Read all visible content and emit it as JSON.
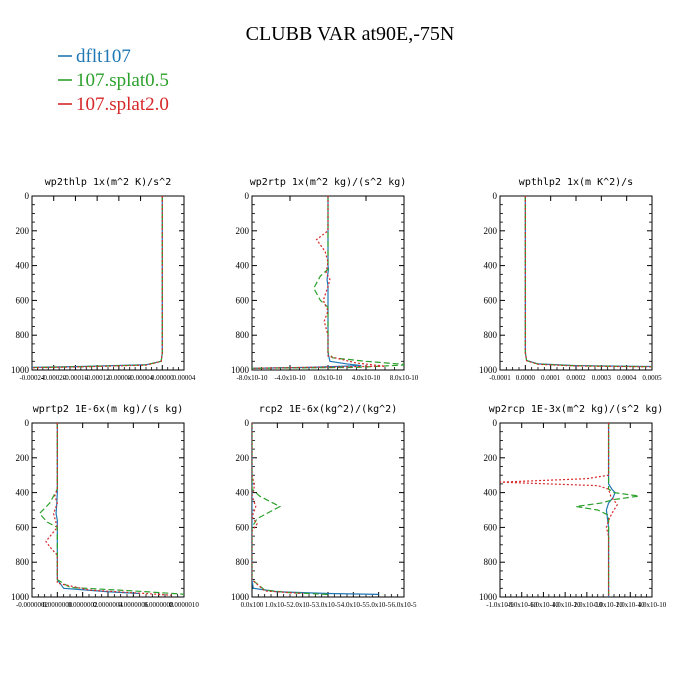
{
  "title": "CLUBB VAR at90E,-75N",
  "legend": [
    {
      "label": "dflt107",
      "color": "#1f77b4",
      "dash": ""
    },
    {
      "label": "107.splat0.5",
      "color": "#2ca02c",
      "dash": "6,3"
    },
    {
      "label": "107.splat2.0",
      "color": "#d62728",
      "dash": "2,2"
    }
  ],
  "chart_data": [
    {
      "type": "line",
      "title": "wp2thlp   1x(m^2 K)/s^2",
      "yticks": [
        "0",
        "200",
        "400",
        "600",
        "800",
        "1000"
      ],
      "xticks": [
        "-0.00024",
        "-0.00020",
        "-0.00016",
        "-0.00012",
        "-0.00008",
        "-0.00004",
        "0.00000",
        "0.00004"
      ],
      "xlim": [
        -0.00024,
        4e-05
      ],
      "ylim": [
        1000,
        0
      ],
      "series": [
        {
          "name": "dflt107",
          "points": [
            [
              0,
              0
            ],
            [
              0,
              300
            ],
            [
              0,
              600
            ],
            [
              0,
              900
            ],
            [
              -2e-06,
              950
            ],
            [
              -3e-05,
              970
            ],
            [
              -0.00015,
              980
            ],
            [
              -0.00024,
              985
            ]
          ]
        },
        {
          "name": "107.splat0.5",
          "points": [
            [
              0,
              0
            ],
            [
              0,
              300
            ],
            [
              0,
              600
            ],
            [
              0,
              900
            ],
            [
              -2e-06,
              950
            ],
            [
              -3e-05,
              971
            ],
            [
              -0.00015,
              981
            ],
            [
              -0.00024,
              986
            ]
          ]
        },
        {
          "name": "107.splat2.0",
          "points": [
            [
              0,
              0
            ],
            [
              0,
              300
            ],
            [
              0,
              600
            ],
            [
              0,
              900
            ],
            [
              -2e-06,
              950
            ],
            [
              -3e-05,
              972
            ],
            [
              -0.00015,
              982
            ],
            [
              -0.00024,
              987
            ]
          ]
        }
      ]
    },
    {
      "type": "line",
      "title": "wp2rtp   1x(m^2 kg)/(s^2 kg)",
      "yticks": [
        "0",
        "200",
        "400",
        "600",
        "800",
        "1000"
      ],
      "xticks": [
        "-8.0x10-10",
        "-4.0x10-10",
        "0.0x10-10",
        "4.0x10-10",
        "8.0x10-10"
      ],
      "xlim": [
        -8e-10,
        8e-10
      ],
      "ylim": [
        1000,
        0
      ],
      "series": [
        {
          "name": "dflt107",
          "points": [
            [
              0,
              0
            ],
            [
              0,
              400
            ],
            [
              5e-12,
              420
            ],
            [
              -1e-11,
              480
            ],
            [
              0,
              520
            ],
            [
              0,
              900
            ],
            [
              2e-11,
              950
            ],
            [
              2e-10,
              965
            ],
            [
              3.5e-10,
              975
            ],
            [
              -2e-10,
              985
            ],
            [
              -8e-10,
              990
            ]
          ]
        },
        {
          "name": "107.splat0.5",
          "points": [
            [
              0,
              0
            ],
            [
              0,
              420
            ],
            [
              -8e-11,
              460
            ],
            [
              -1.5e-10,
              530
            ],
            [
              -8e-11,
              600
            ],
            [
              0,
              640
            ],
            [
              0,
              900
            ],
            [
              5e-11,
              930
            ],
            [
              4e-10,
              950
            ],
            [
              8.5e-10,
              970
            ],
            [
              3e-10,
              985
            ],
            [
              -8e-10,
              990
            ]
          ]
        },
        {
          "name": "107.splat2.0",
          "points": [
            [
              0,
              0
            ],
            [
              0,
              200
            ],
            [
              -1.2e-10,
              250
            ],
            [
              -3e-11,
              320
            ],
            [
              0,
              380
            ],
            [
              -2e-11,
              440
            ],
            [
              2e-11,
              480
            ],
            [
              0,
              520
            ],
            [
              -5e-11,
              600
            ],
            [
              0,
              660
            ],
            [
              -4e-11,
              720
            ],
            [
              0,
              800
            ],
            [
              0,
              920
            ],
            [
              3e-10,
              960
            ],
            [
              6e-10,
              978
            ],
            [
              -8e-10,
              990
            ]
          ]
        }
      ]
    },
    {
      "type": "line",
      "title": "wpthlp2   1x(m K^2)/s",
      "yticks": [
        "0",
        "200",
        "400",
        "600",
        "800",
        "1000"
      ],
      "xticks": [
        "-0.0001",
        "0.0000",
        "0.0001",
        "0.0002",
        "0.0003",
        "0.0004",
        "0.0005"
      ],
      "xlim": [
        -0.0001,
        0.0005
      ],
      "ylim": [
        1000,
        0
      ],
      "series": [
        {
          "name": "dflt107",
          "points": [
            [
              0,
              0
            ],
            [
              0,
              300
            ],
            [
              0,
              600
            ],
            [
              0,
              900
            ],
            [
              5e-06,
              945
            ],
            [
              5e-05,
              965
            ],
            [
              0.0002,
              975
            ],
            [
              0.0005,
              980
            ]
          ]
        },
        {
          "name": "107.splat0.5",
          "points": [
            [
              0,
              0
            ],
            [
              0,
              300
            ],
            [
              0,
              600
            ],
            [
              0,
              900
            ],
            [
              5e-06,
              946
            ],
            [
              5e-05,
              966
            ],
            [
              0.0002,
              976
            ],
            [
              0.0005,
              981
            ]
          ]
        },
        {
          "name": "107.splat2.0",
          "points": [
            [
              0,
              0
            ],
            [
              0,
              300
            ],
            [
              0,
              600
            ],
            [
              0,
              900
            ],
            [
              5e-06,
              947
            ],
            [
              5e-05,
              967
            ],
            [
              0.0002,
              977
            ],
            [
              0.0005,
              982
            ]
          ]
        }
      ]
    },
    {
      "type": "line",
      "title": "wprtp2   1E-6x(m kg)/(s kg)",
      "yticks": [
        "0",
        "200",
        "400",
        "600",
        "800",
        "1000"
      ],
      "xticks": [
        "-0.0000002",
        "0.0000000",
        "0.0000002",
        "0.0000004",
        "0.0000006",
        "0.0000008",
        "0.0000010"
      ],
      "xlim": [
        -2e-07,
        1e-06
      ],
      "ylim": [
        1000,
        0
      ],
      "series": [
        {
          "name": "dflt107",
          "points": [
            [
              0,
              0
            ],
            [
              0,
              400
            ],
            [
              -5e-09,
              470
            ],
            [
              -1e-08,
              520
            ],
            [
              0,
              560
            ],
            [
              0,
              900
            ],
            [
              5e-08,
              950
            ],
            [
              4e-07,
              970
            ],
            [
              6.5e-07,
              980
            ]
          ]
        },
        {
          "name": "107.splat0.5",
          "points": [
            [
              0,
              0
            ],
            [
              0,
              380
            ],
            [
              -6e-08,
              460
            ],
            [
              -1.4e-07,
              520
            ],
            [
              -8e-08,
              570
            ],
            [
              0,
              600
            ],
            [
              0,
              900
            ],
            [
              1e-07,
              945
            ],
            [
              6e-07,
              965
            ],
            [
              1.02e-06,
              985
            ]
          ]
        },
        {
          "name": "107.splat2.0",
          "points": [
            [
              0,
              0
            ],
            [
              0,
              380
            ],
            [
              -2e-08,
              420
            ],
            [
              0,
              460
            ],
            [
              -3e-08,
              520
            ],
            [
              0,
              600
            ],
            [
              -9e-08,
              680
            ],
            [
              -5e-08,
              720
            ],
            [
              0,
              760
            ],
            [
              0,
              920
            ],
            [
              2.5e-07,
              960
            ],
            [
              7e-07,
              980
            ],
            [
              9e-07,
              990
            ]
          ]
        }
      ]
    },
    {
      "type": "line",
      "title": "rcp2   1E-6x(kg^2)/(kg^2)",
      "yticks": [
        "0",
        "200",
        "400",
        "600",
        "800",
        "1000"
      ],
      "xticks": [
        "0.0x100",
        "1.0x10-5",
        "2.0x10-5",
        "3.0x10-5",
        "4.0x10-5",
        "5.0x10-5",
        "6.0x10-5"
      ],
      "xlim": [
        0.0,
        6e-05
      ],
      "ylim": [
        1000,
        0
      ],
      "series": [
        {
          "name": "dflt107",
          "points": [
            [
              0,
              0
            ],
            [
              0,
              900
            ],
            [
              5e-07,
              950
            ],
            [
              1e-05,
              970
            ],
            [
              3e-05,
              980
            ],
            [
              5e-05,
              985
            ]
          ]
        },
        {
          "name": "107.splat0.5",
          "points": [
            [
              0,
              0
            ],
            [
              0,
              380
            ],
            [
              3e-06,
              420
            ],
            [
              1.1e-05,
              480
            ],
            [
              2e-06,
              550
            ],
            [
              0,
              600
            ],
            [
              0,
              900
            ],
            [
              5e-06,
              960
            ],
            [
              1.5e-05,
              975
            ],
            [
              3e-05,
              985
            ]
          ]
        },
        {
          "name": "107.splat2.0",
          "points": [
            [
              0,
              0
            ],
            [
              0,
              300
            ],
            [
              1e-06,
              360
            ],
            [
              0,
              420
            ],
            [
              1.5e-06,
              480
            ],
            [
              0,
              540
            ],
            [
              2e-06,
              580
            ],
            [
              0,
              620
            ],
            [
              0,
              900
            ],
            [
              5e-06,
              965
            ],
            [
              2e-05,
              980
            ]
          ]
        }
      ]
    },
    {
      "type": "line",
      "title": "wp2rcp   1E-3x(m^2 kg)/(s^2 kg)",
      "yticks": [
        "0",
        "200",
        "400",
        "600",
        "800",
        "1000"
      ],
      "xticks": [
        "-1.0x10-9",
        "-8.0x10-10",
        "-6.0x10-10",
        "-4.0x10-10",
        "-2.0x10-10",
        "0.0x10-10",
        "2.0x10-10",
        "4.0x10-10"
      ],
      "xlim": [
        -1e-09,
        4e-10
      ],
      "ylim": [
        1000,
        0
      ],
      "series": [
        {
          "name": "dflt107",
          "points": [
            [
              0,
              0
            ],
            [
              0,
              350
            ],
            [
              3e-11,
              380
            ],
            [
              6e-11,
              400
            ],
            [
              4e-11,
              430
            ],
            [
              0,
              460
            ],
            [
              -2e-11,
              500
            ],
            [
              -1e-11,
              550
            ],
            [
              0,
              600
            ],
            [
              0,
              1000
            ]
          ]
        },
        {
          "name": "107.splat0.5",
          "points": [
            [
              0,
              0
            ],
            [
              0,
              380
            ],
            [
              5e-11,
              400
            ],
            [
              2.8e-10,
              420
            ],
            [
              5e-11,
              440
            ],
            [
              -7e-11,
              460
            ],
            [
              -3e-10,
              480
            ],
            [
              -1e-10,
              500
            ],
            [
              0,
              530
            ],
            [
              0,
              1000
            ]
          ]
        },
        {
          "name": "107.splat2.0",
          "points": [
            [
              0,
              0
            ],
            [
              0,
              300
            ],
            [
              -2e-10,
              320
            ],
            [
              -1e-09,
              340
            ],
            [
              -1e-10,
              360
            ],
            [
              0,
              380
            ],
            [
              2e-11,
              420
            ],
            [
              8e-11,
              470
            ],
            [
              3e-11,
              520
            ],
            [
              0,
              560
            ],
            [
              -2e-11,
              600
            ],
            [
              0,
              650
            ],
            [
              0,
              1000
            ]
          ]
        }
      ]
    }
  ]
}
